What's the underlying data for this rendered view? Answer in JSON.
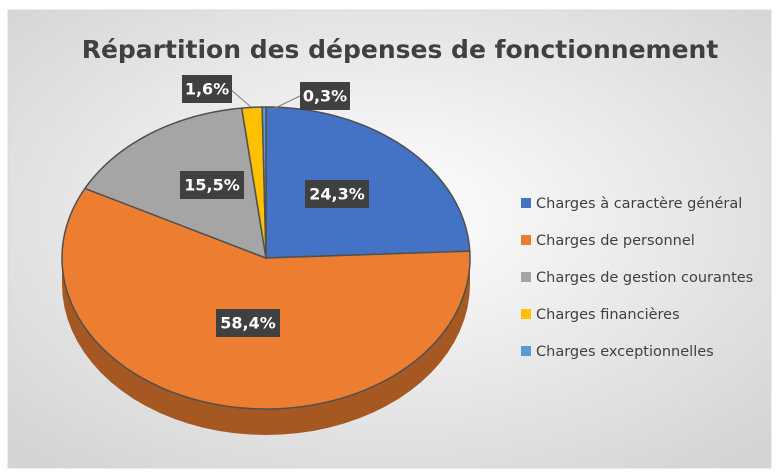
{
  "chart_data": {
    "type": "pie",
    "title": "Répartition des dépenses de fonctionnement",
    "categories": [
      "Charges à caractère général",
      "Charges de personnel",
      "Charges de gestion courantes",
      "Charges financières",
      "Charges exceptionnelles"
    ],
    "values": [
      24.3,
      58.4,
      15.5,
      1.6,
      0.3
    ],
    "value_labels": [
      "24,3%",
      "58,4%",
      "15,5%",
      "1,6%",
      "0,3%"
    ],
    "colors": [
      "#4472c4",
      "#ed7d31",
      "#a5a5a5",
      "#ffc000",
      "#5b9bd5"
    ],
    "legend": "right"
  }
}
